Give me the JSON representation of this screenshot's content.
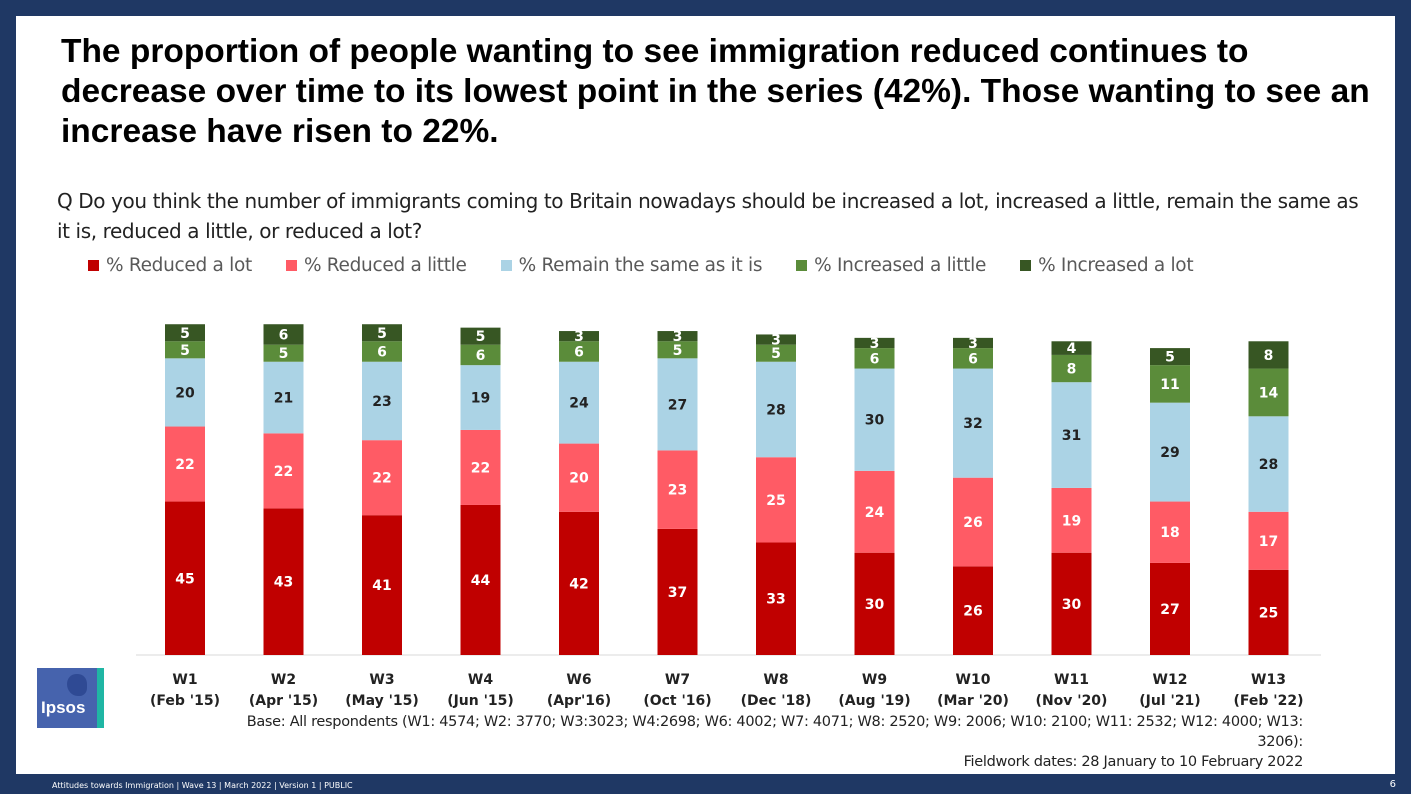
{
  "title": "The proportion of people wanting to see immigration reduced continues to decrease over time to its lowest point in the series (42%). Those wanting to see an increase have risen to 22%.",
  "question": "Q Do you think the number of immigrants coming to Britain nowadays should be increased a lot, increased a little, remain the same as it is, reduced a little, or reduced a lot?",
  "base_line1": "Base: All respondents (W1: 4574; W2: 3770; W3:3023; W4:2698; W6: 4002; W7: 4071; W8: 2520; W9: 2006; W10: 2100; W11: 2532; W12: 4000; W13: 3206):",
  "base_line2": "Fieldwork dates: 28 January to 10 February 2022",
  "footer": "Attitudes towards Immigration | Wave 13 | March 2022 | Version 1 | PUBLIC",
  "page_number": "6",
  "logo_text": "Ipsos",
  "colors": {
    "reduced_lot": "#c00000",
    "reduced_little": "#ff5b65",
    "same": "#abd3e5",
    "increased_little": "#5b8c3a",
    "increased_lot": "#375623"
  },
  "chart_data": {
    "type": "bar",
    "stacked": true,
    "title": "",
    "xlabel": "",
    "ylabel": "",
    "ylim": [
      0,
      100
    ],
    "grid": false,
    "legend_position": "top",
    "categories": [
      [
        "W1",
        "(Feb '15)"
      ],
      [
        "W2",
        "(Apr '15)"
      ],
      [
        "W3",
        "(May '15)"
      ],
      [
        "W4",
        "(Jun '15)"
      ],
      [
        "W6",
        "(Apr'16)"
      ],
      [
        "W7",
        "(Oct '16)"
      ],
      [
        "W8",
        "(Dec '18)"
      ],
      [
        "W9",
        "(Aug '19)"
      ],
      [
        "W10",
        "(Mar '20)"
      ],
      [
        "W11",
        "(Nov '20)"
      ],
      [
        "W12",
        "(Jul '21)"
      ],
      [
        "W13",
        "(Feb '22)"
      ]
    ],
    "series": [
      {
        "name": "% Reduced a lot",
        "key": "reduced_lot",
        "values": [
          45,
          43,
          41,
          44,
          42,
          37,
          33,
          30,
          26,
          30,
          27,
          25
        ]
      },
      {
        "name": "% Reduced a little",
        "key": "reduced_little",
        "values": [
          22,
          22,
          22,
          22,
          20,
          23,
          25,
          24,
          26,
          19,
          18,
          17
        ]
      },
      {
        "name": "% Remain the same as it is",
        "key": "same",
        "values": [
          20,
          21,
          23,
          19,
          24,
          27,
          28,
          30,
          32,
          31,
          29,
          28
        ]
      },
      {
        "name": "% Increased a little",
        "key": "increased_little",
        "values": [
          5,
          5,
          6,
          6,
          6,
          5,
          5,
          6,
          6,
          8,
          11,
          14
        ]
      },
      {
        "name": "% Increased a lot",
        "key": "increased_lot",
        "values": [
          5,
          6,
          5,
          5,
          3,
          3,
          3,
          3,
          3,
          4,
          5,
          8
        ]
      }
    ]
  }
}
